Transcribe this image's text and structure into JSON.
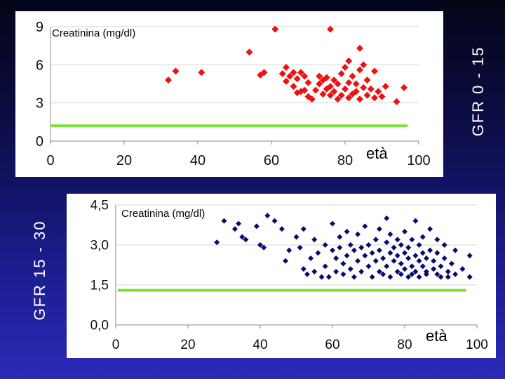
{
  "labels": {
    "top_group": "GFR 0 - 15",
    "bottom_group": "GFR 15 - 30"
  },
  "colors": {
    "top_marker": "#ee1111",
    "bottom_marker": "#0a0a70",
    "reference_line": "#7fe03a"
  },
  "chart_data": [
    {
      "id": "gfr-0-15",
      "type": "scatter",
      "title": "Creatinina (mg/dl)",
      "xlabel": "età",
      "ylabel": "",
      "xlim": [
        0,
        100
      ],
      "ylim": [
        0,
        9
      ],
      "xticks": [
        "0",
        "20",
        "40",
        "60",
        "80",
        "100"
      ],
      "xtick_values": [
        0,
        20,
        40,
        60,
        80,
        100
      ],
      "yticks": [
        "0",
        "3",
        "6",
        "9"
      ],
      "ytick_values": [
        0,
        3,
        6,
        9
      ],
      "reference_line_y": 1.2,
      "points": [
        [
          32,
          4.8
        ],
        [
          34,
          5.5
        ],
        [
          41,
          5.4
        ],
        [
          54,
          7.0
        ],
        [
          57,
          5.2
        ],
        [
          58,
          5.4
        ],
        [
          61,
          8.8
        ],
        [
          63,
          5.3
        ],
        [
          64,
          4.7
        ],
        [
          64,
          5.8
        ],
        [
          65,
          5.1
        ],
        [
          66,
          4.3
        ],
        [
          66,
          5.4
        ],
        [
          67,
          3.8
        ],
        [
          67,
          4.9
        ],
        [
          68,
          5.4
        ],
        [
          68,
          3.9
        ],
        [
          69,
          4.0
        ],
        [
          69,
          5.1
        ],
        [
          70,
          3.5
        ],
        [
          70,
          4.6
        ],
        [
          71,
          3.3
        ],
        [
          72,
          4.0
        ],
        [
          73,
          4.5
        ],
        [
          73,
          5.1
        ],
        [
          74,
          3.7
        ],
        [
          74,
          4.8
        ],
        [
          75,
          4.1
        ],
        [
          75,
          5.0
        ],
        [
          76,
          3.6
        ],
        [
          76,
          4.3
        ],
        [
          76,
          8.8
        ],
        [
          77,
          3.9
        ],
        [
          77,
          4.8
        ],
        [
          78,
          3.3
        ],
        [
          78,
          4.5
        ],
        [
          79,
          3.6
        ],
        [
          79,
          5.3
        ],
        [
          80,
          4.1
        ],
        [
          80,
          5.8
        ],
        [
          81,
          3.4
        ],
        [
          81,
          4.6
        ],
        [
          81,
          6.3
        ],
        [
          82,
          3.7
        ],
        [
          82,
          5.1
        ],
        [
          83,
          3.9
        ],
        [
          83,
          4.5
        ],
        [
          84,
          3.3
        ],
        [
          84,
          5.6
        ],
        [
          84,
          7.3
        ],
        [
          85,
          4.2
        ],
        [
          85,
          6.0
        ],
        [
          86,
          3.6
        ],
        [
          86,
          4.8
        ],
        [
          87,
          4.1
        ],
        [
          88,
          3.4
        ],
        [
          88,
          5.5
        ],
        [
          89,
          3.9
        ],
        [
          90,
          3.5
        ],
        [
          91,
          4.3
        ],
        [
          94,
          3.1
        ],
        [
          96,
          4.2
        ]
      ]
    },
    {
      "id": "gfr-15-30",
      "type": "scatter",
      "title": "Creatinina (mg/dl)",
      "xlabel": "età",
      "ylabel": "",
      "xlim": [
        0,
        100
      ],
      "ylim": [
        0,
        4.5
      ],
      "xticks": [
        "0",
        "20",
        "40",
        "60",
        "80",
        "100"
      ],
      "xtick_values": [
        0,
        20,
        40,
        60,
        80,
        100
      ],
      "yticks": [
        "0,0",
        "1,5",
        "3,0",
        "4,5"
      ],
      "ytick_values": [
        0,
        1.5,
        3.0,
        4.5
      ],
      "reference_line_y": 1.3,
      "points": [
        [
          28,
          3.1
        ],
        [
          30,
          3.9
        ],
        [
          33,
          3.6
        ],
        [
          34,
          3.8
        ],
        [
          35,
          3.3
        ],
        [
          36,
          3.2
        ],
        [
          39,
          3.7
        ],
        [
          40,
          3.0
        ],
        [
          41,
          2.9
        ],
        [
          42,
          4.1
        ],
        [
          44,
          3.9
        ],
        [
          46,
          3.6
        ],
        [
          47,
          2.4
        ],
        [
          48,
          2.8
        ],
        [
          50,
          3.3
        ],
        [
          51,
          2.9
        ],
        [
          52,
          2.1
        ],
        [
          52,
          3.6
        ],
        [
          53,
          1.9
        ],
        [
          54,
          2.5
        ],
        [
          55,
          3.2
        ],
        [
          55,
          2.0
        ],
        [
          56,
          2.7
        ],
        [
          57,
          1.8
        ],
        [
          58,
          3.0
        ],
        [
          58,
          2.2
        ],
        [
          59,
          1.8
        ],
        [
          60,
          2.8
        ],
        [
          60,
          3.8
        ],
        [
          61,
          2.5
        ],
        [
          61,
          2.0
        ],
        [
          62,
          3.3
        ],
        [
          62,
          2.9
        ],
        [
          63,
          1.9
        ],
        [
          63,
          2.3
        ],
        [
          64,
          2.6
        ],
        [
          64,
          3.5
        ],
        [
          65,
          2.1
        ],
        [
          65,
          3.0
        ],
        [
          66,
          2.8
        ],
        [
          66,
          1.8
        ],
        [
          67,
          2.4
        ],
        [
          67,
          3.4
        ],
        [
          68,
          2.0
        ],
        [
          68,
          2.9
        ],
        [
          69,
          2.6
        ],
        [
          69,
          3.7
        ],
        [
          70,
          2.2
        ],
        [
          70,
          3.0
        ],
        [
          71,
          1.8
        ],
        [
          71,
          2.7
        ],
        [
          72,
          2.4
        ],
        [
          72,
          3.2
        ],
        [
          73,
          2.0
        ],
        [
          73,
          2.8
        ],
        [
          73,
          3.6
        ],
        [
          74,
          2.5
        ],
        [
          74,
          1.9
        ],
        [
          75,
          3.1
        ],
        [
          75,
          2.2
        ],
        [
          75,
          4.0
        ],
        [
          76,
          2.7
        ],
        [
          76,
          1.8
        ],
        [
          76,
          3.4
        ],
        [
          77,
          2.4
        ],
        [
          77,
          2.9
        ],
        [
          78,
          2.0
        ],
        [
          78,
          3.2
        ],
        [
          78,
          2.6
        ],
        [
          79,
          1.9
        ],
        [
          79,
          2.3
        ],
        [
          79,
          3.0
        ],
        [
          80,
          2.7
        ],
        [
          80,
          2.1
        ],
        [
          80,
          3.5
        ],
        [
          81,
          1.8
        ],
        [
          81,
          2.5
        ],
        [
          81,
          2.9
        ],
        [
          82,
          2.2
        ],
        [
          82,
          3.2
        ],
        [
          82,
          1.9
        ],
        [
          83,
          2.6
        ],
        [
          83,
          3.9
        ],
        [
          83,
          2.0
        ],
        [
          84,
          2.4
        ],
        [
          84,
          3.0
        ],
        [
          84,
          1.8
        ],
        [
          85,
          2.7
        ],
        [
          85,
          2.2
        ],
        [
          85,
          3.3
        ],
        [
          86,
          2.0
        ],
        [
          86,
          2.5
        ],
        [
          86,
          1.9
        ],
        [
          87,
          2.8
        ],
        [
          87,
          3.6
        ],
        [
          88,
          2.1
        ],
        [
          88,
          2.4
        ],
        [
          89,
          1.9
        ],
        [
          89,
          2.7
        ],
        [
          89,
          3.2
        ],
        [
          90,
          2.2
        ],
        [
          90,
          1.8
        ],
        [
          91,
          2.5
        ],
        [
          91,
          3.0
        ],
        [
          92,
          2.0
        ],
        [
          92,
          1.8
        ],
        [
          93,
          2.3
        ],
        [
          94,
          2.8
        ],
        [
          94,
          1.9
        ],
        [
          96,
          2.1
        ],
        [
          98,
          2.6
        ],
        [
          98,
          1.8
        ]
      ]
    }
  ]
}
